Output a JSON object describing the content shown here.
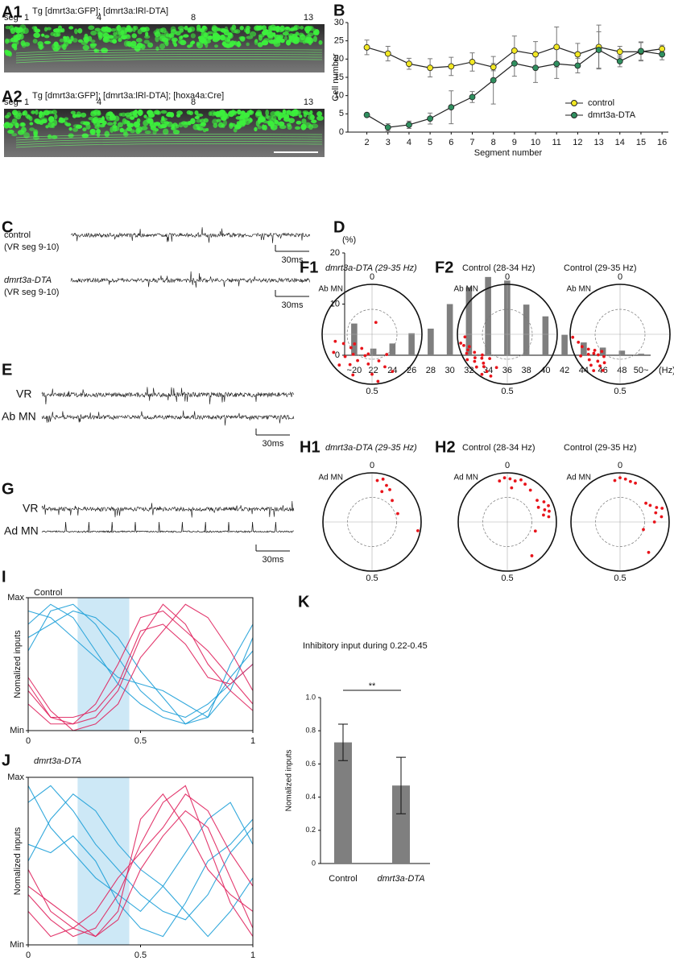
{
  "panels": {
    "A1": {
      "label": "A1",
      "title": "Tg [dmrt3a:GFP]; [dmrt3a:lRl-DTA]",
      "seg": "seg",
      "segments": [
        "1",
        "4",
        "8",
        "13"
      ]
    },
    "A2": {
      "label": "A2",
      "title": "Tg [dmrt3a:GFP]; [dmrt3a:lRl-DTA]; [hoxa4a:Cre]",
      "seg": "seg",
      "segments": [
        "1",
        "4",
        "8",
        "13"
      ]
    },
    "C": {
      "label": "C",
      "traces": [
        {
          "name": "control",
          "site": "(VR seg 9-10)",
          "scale": "30ms"
        },
        {
          "name": "dmrt3a-DTA",
          "site": "(VR seg 9-10)",
          "scale": "30ms"
        }
      ]
    },
    "E": {
      "label": "E",
      "traces": [
        "VR",
        "Ab MN"
      ],
      "scale": "30ms"
    },
    "G": {
      "label": "G",
      "traces": [
        "VR",
        "Ad MN"
      ],
      "scale": "30ms"
    }
  },
  "chart_data": [
    {
      "type": "line",
      "panel": "B",
      "x_label": "Segment number",
      "y_label": "Cell number",
      "x": [
        2,
        3,
        4,
        5,
        6,
        7,
        8,
        9,
        10,
        11,
        12,
        13,
        14,
        15,
        16
      ],
      "xlim": [
        1.1,
        16.3
      ],
      "xticks": [
        2,
        3,
        4,
        5,
        6,
        7,
        8,
        9,
        10,
        11,
        12,
        13,
        14,
        15,
        16
      ],
      "ylim": [
        0,
        30
      ],
      "yticks": [
        0,
        5,
        10,
        15,
        20,
        25,
        30
      ],
      "legend": "lower right",
      "series": [
        {
          "name": "control",
          "color": "#f2e824",
          "values": [
            23.2,
            21.5,
            18.7,
            17.6,
            18,
            19.2,
            17.8,
            22.3,
            21.3,
            23.3,
            21.3,
            23.3,
            22,
            22,
            22.8
          ],
          "errors": [
            2,
            2,
            1.5,
            2.5,
            2.5,
            2.5,
            1,
            4,
            3.5,
            5.5,
            3,
            6,
            1.5,
            2.5,
            1
          ]
        },
        {
          "name": "dmrt3a-DTA",
          "color": "#2f8f5f",
          "values": [
            4.7,
            1.3,
            2,
            3.7,
            6.8,
            9.6,
            14.2,
            18.8,
            17.6,
            18.7,
            18.2,
            22.5,
            19.4,
            22.2,
            21.3
          ],
          "errors": [
            0.3,
            1,
            1,
            1.5,
            4.5,
            1.5,
            6.5,
            3.5,
            4,
            4,
            2,
            5,
            1.5,
            2.5,
            1.5
          ]
        }
      ]
    },
    {
      "type": "bar",
      "panel": "D",
      "y_unit": "(%)",
      "x_unit": "(Hz)",
      "categories": [
        "~20",
        "22",
        "24",
        "26",
        "28",
        "30",
        "32",
        "34",
        "36",
        "38",
        "40",
        "42",
        "44",
        "46",
        "48",
        "50~"
      ],
      "values": [
        6.2,
        1.3,
        2.3,
        4.3,
        5.2,
        10,
        13.3,
        15.3,
        14.6,
        9.9,
        7.6,
        4,
        2.5,
        1.5,
        0.9,
        0.3
      ],
      "color": "#7f7f7f",
      "ylim": [
        0,
        20
      ],
      "yticks": [
        0,
        10,
        20
      ]
    },
    {
      "type": "polar",
      "panel": "F1",
      "title": "dmrt3a-DTA (29-35 Hz)",
      "axis_label": "Ab MN",
      "thetaticks": [
        0,
        0.5
      ],
      "rlim": [
        0,
        1
      ],
      "rgrid": [
        0.5
      ],
      "color": "#e8141b",
      "phase": [
        0.55,
        0.58,
        0.6,
        0.62,
        0.64,
        0.66,
        0.68,
        0.7,
        0.72,
        0.63,
        0.6,
        0.52,
        0.5,
        0.48,
        0.46,
        0.44,
        0.42,
        0.57,
        0.53,
        0.05,
        0.4,
        0.67
      ],
      "r": [
        0.45,
        0.6,
        0.75,
        0.55,
        0.7,
        0.5,
        0.85,
        0.6,
        0.75,
        0.9,
        0.35,
        0.6,
        0.8,
        0.95,
        0.55,
        0.7,
        0.85,
        0.9,
        0.4,
        0.25,
        0.5,
        0.4
      ]
    },
    {
      "type": "polar",
      "panel": "F2",
      "title": "Control (28-34 Hz)",
      "axis_label": "Ab MN",
      "thetaticks": [
        0,
        0.5
      ],
      "rlim": [
        0,
        1
      ],
      "rgrid": [
        0.5
      ],
      "color": "#e8141b",
      "phase": [
        0.56,
        0.58,
        0.59,
        0.6,
        0.61,
        0.62,
        0.63,
        0.64,
        0.65,
        0.66,
        0.67,
        0.68,
        0.69,
        0.7,
        0.71,
        0.72,
        0.6,
        0.64,
        0.55,
        0.74
      ],
      "r": [
        0.9,
        0.85,
        0.95,
        0.8,
        0.75,
        0.9,
        0.7,
        0.85,
        0.8,
        0.95,
        0.75,
        0.9,
        0.85,
        0.8,
        0.9,
        0.95,
        0.6,
        0.65,
        0.7,
        0.85
      ]
    },
    {
      "type": "polar",
      "title": "Control (29-35 Hz)",
      "axis_label": "Ab MN",
      "thetaticks": [
        0,
        0.5
      ],
      "rlim": [
        0,
        1
      ],
      "rgrid": [
        0.5
      ],
      "color": "#e8141b",
      "phase": [
        0.57,
        0.59,
        0.6,
        0.61,
        0.62,
        0.63,
        0.64,
        0.65,
        0.66,
        0.67,
        0.68,
        0.7,
        0.72,
        0.74,
        0.6,
        0.63,
        0.58,
        0.66
      ],
      "r": [
        0.8,
        0.75,
        0.9,
        0.7,
        0.85,
        0.6,
        0.8,
        0.65,
        0.75,
        0.9,
        0.7,
        0.8,
        0.85,
        0.95,
        0.55,
        0.5,
        0.65,
        0.6
      ]
    },
    {
      "type": "polar",
      "panel": "H1",
      "title": "dmrt3a-DTA (29-35 Hz)",
      "axis_label": "Ad MN",
      "thetaticks": [
        0,
        0.5
      ],
      "rlim": [
        0,
        1
      ],
      "rgrid": [
        0.5
      ],
      "color": "#e8141b",
      "phase": [
        0.02,
        0.04,
        0.06,
        0.08,
        0.05,
        0.12,
        0.2,
        0.28
      ],
      "r": [
        0.85,
        0.9,
        0.8,
        0.75,
        0.65,
        0.6,
        0.55,
        0.95
      ]
    },
    {
      "type": "polar",
      "panel": "H2",
      "title": "Control (28-34 Hz)",
      "axis_label": "Ad MN",
      "thetaticks": [
        0,
        0.5
      ],
      "rlim": [
        0,
        1
      ],
      "rgrid": [
        0.5
      ],
      "color": "#e8141b",
      "phase": [
        0.97,
        0.99,
        0.01,
        0.03,
        0.05,
        0.07,
        0.1,
        0.15,
        0.17,
        0.19,
        0.2,
        0.21,
        0.22,
        0.23,
        0.18,
        0.3,
        0.4,
        0.02
      ],
      "r": [
        0.85,
        0.9,
        0.88,
        0.85,
        0.9,
        0.85,
        0.8,
        0.75,
        0.85,
        0.9,
        0.8,
        0.88,
        0.75,
        0.85,
        0.7,
        0.6,
        0.85,
        0.7
      ]
    },
    {
      "type": "polar",
      "title": "Control (29-35 Hz)",
      "axis_label": "Ad MN",
      "thetaticks": [
        0,
        0.5
      ],
      "rlim": [
        0,
        1
      ],
      "rgrid": [
        0.5
      ],
      "color": "#e8141b",
      "phase": [
        0.98,
        0.0,
        0.02,
        0.04,
        0.06,
        0.15,
        0.17,
        0.19,
        0.21,
        0.23,
        0.25,
        0.3,
        0.38,
        0.2
      ],
      "r": [
        0.85,
        0.9,
        0.88,
        0.85,
        0.85,
        0.65,
        0.7,
        0.8,
        0.75,
        0.85,
        0.7,
        0.5,
        0.85,
        0.9
      ]
    },
    {
      "type": "line",
      "panel": "I",
      "title": "Control",
      "y_label": "Nomalized inputs",
      "shade": [
        0.22,
        0.45
      ],
      "shade_color": "#cde8f6",
      "x": [
        0,
        0.1,
        0.2,
        0.3,
        0.4,
        0.5,
        0.6,
        0.7,
        0.8,
        0.9,
        1
      ],
      "xlim": [
        0,
        1
      ],
      "xticks": [
        0,
        0.5,
        1
      ],
      "ylim": [
        0,
        1
      ],
      "yticks": [
        {
          "value": 0,
          "label": "Min"
        },
        {
          "value": 1,
          "label": "Max"
        }
      ],
      "series": [
        {
          "color": "#1ea0d8",
          "values": [
            0.8,
            0.95,
            0.85,
            0.6,
            0.35,
            0.2,
            0.1,
            0.05,
            0.15,
            0.4,
            0.6
          ]
        },
        {
          "color": "#1ea0d8",
          "values": [
            0.6,
            0.9,
            0.95,
            0.8,
            0.55,
            0.3,
            0.15,
            0.1,
            0.2,
            0.35,
            0.5
          ]
        },
        {
          "color": "#1ea0d8",
          "values": [
            0.9,
            0.85,
            0.7,
            0.55,
            0.4,
            0.35,
            0.3,
            0.2,
            0.1,
            0.3,
            0.7
          ]
        },
        {
          "color": "#1ea0d8",
          "values": [
            0.7,
            0.8,
            0.9,
            0.85,
            0.7,
            0.45,
            0.25,
            0.05,
            0.1,
            0.5,
            0.8
          ]
        },
        {
          "color": "#e0245e",
          "values": [
            0.35,
            0.1,
            0.05,
            0.1,
            0.3,
            0.7,
            0.95,
            0.8,
            0.5,
            0.3,
            0.15
          ]
        },
        {
          "color": "#e0245e",
          "values": [
            0.2,
            0.05,
            0.05,
            0.2,
            0.5,
            0.85,
            0.9,
            0.75,
            0.6,
            0.4,
            0.2
          ]
        },
        {
          "color": "#e0245e",
          "values": [
            0.4,
            0.15,
            0,
            0.05,
            0.2,
            0.55,
            0.75,
            0.95,
            0.85,
            0.6,
            0.3
          ]
        },
        {
          "color": "#e0245e",
          "values": [
            0.3,
            0.1,
            0.1,
            0.15,
            0.35,
            0.75,
            0.8,
            0.65,
            0.4,
            0.35,
            0.5
          ]
        }
      ]
    },
    {
      "type": "line",
      "panel": "J",
      "title": "dmrt3a-DTA",
      "y_label": "Nomalized inputs",
      "shade": [
        0.22,
        0.45
      ],
      "shade_color": "#cde8f6",
      "x": [
        0,
        0.1,
        0.2,
        0.3,
        0.4,
        0.5,
        0.6,
        0.7,
        0.8,
        0.9,
        1
      ],
      "xlim": [
        0,
        1
      ],
      "xticks": [
        0,
        0.5,
        1
      ],
      "ylim": [
        0,
        1
      ],
      "yticks": [
        {
          "value": 0,
          "label": "Min"
        },
        {
          "value": 1,
          "label": "Max"
        }
      ],
      "series": [
        {
          "color": "#1ea0d8",
          "values": [
            0.85,
            0.95,
            0.8,
            0.6,
            0.45,
            0.3,
            0.2,
            0.15,
            0.3,
            0.55,
            0.7
          ]
        },
        {
          "color": "#1ea0d8",
          "values": [
            0.5,
            0.75,
            0.9,
            0.8,
            0.6,
            0.45,
            0.35,
            0.2,
            0.05,
            0.2,
            0.4
          ]
        },
        {
          "color": "#1ea0d8",
          "values": [
            0.95,
            0.7,
            0.55,
            0.4,
            0.3,
            0.2,
            0.35,
            0.55,
            0.75,
            0.85,
            0.6
          ]
        },
        {
          "color": "#1ea0d8",
          "values": [
            0.6,
            0.55,
            0.65,
            0.5,
            0.25,
            0.1,
            0.05,
            0.25,
            0.5,
            0.6,
            0.75
          ]
        },
        {
          "color": "#e0245e",
          "values": [
            0.3,
            0.15,
            0.05,
            0.1,
            0.3,
            0.6,
            0.85,
            0.95,
            0.6,
            0.25,
            0.05
          ]
        },
        {
          "color": "#e0245e",
          "values": [
            0.45,
            0.2,
            0.1,
            0.05,
            0.2,
            0.75,
            0.9,
            0.7,
            0.45,
            0.3,
            0.2
          ]
        },
        {
          "color": "#e0245e",
          "values": [
            0.2,
            0.05,
            0.1,
            0.2,
            0.4,
            0.55,
            0.7,
            0.9,
            0.8,
            0.55,
            0.35
          ]
        },
        {
          "color": "#e0245e",
          "values": [
            0.35,
            0.25,
            0.15,
            0.05,
            0.15,
            0.45,
            0.65,
            0.8,
            0.7,
            0.4,
            0.1
          ]
        }
      ]
    },
    {
      "type": "bar",
      "panel": "K",
      "title": "Inhibitory input during 0.22-0.45",
      "y_label": "Nomalized inputs",
      "significance": "**",
      "categories": [
        "Control",
        "dmrt3a-DTA"
      ],
      "values": [
        0.73,
        0.47
      ],
      "errors": [
        0.11,
        0.17
      ],
      "color": "#7f7f7f",
      "ylim": [
        0,
        1
      ],
      "yticks": [
        0,
        0.2,
        0.4,
        0.6,
        0.8,
        {
          "value": 1,
          "label": "1.0"
        }
      ]
    }
  ]
}
